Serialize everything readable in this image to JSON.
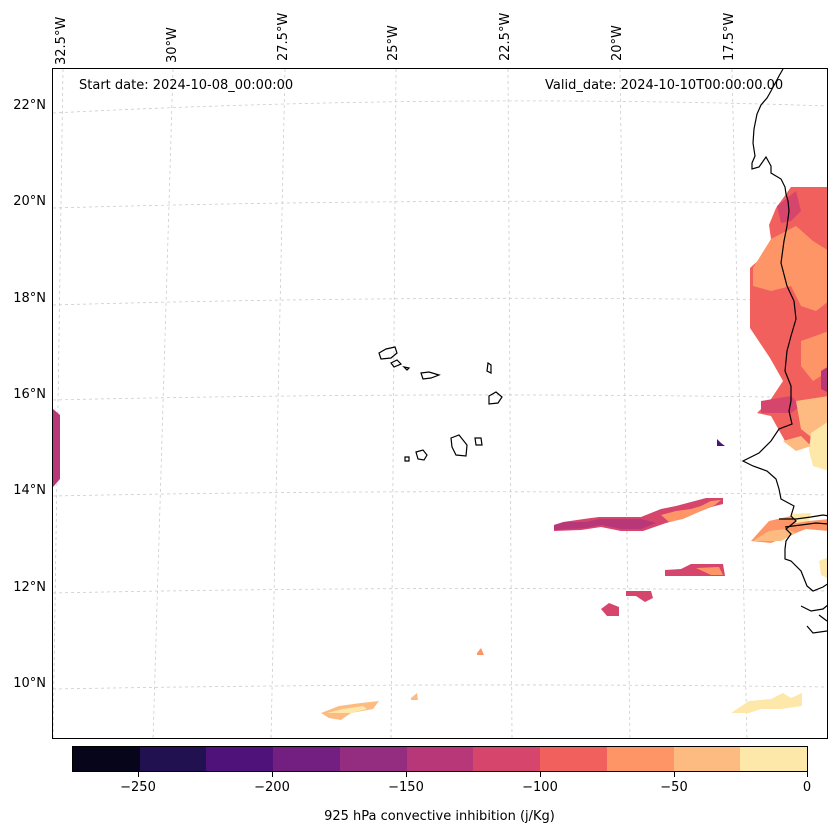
{
  "annotations": {
    "start_date": "Start date: 2024-10-08_00:00:00",
    "valid_date": "Valid_date: 2024-10-10T00:00:00.00"
  },
  "longitude_labels": [
    "32.5°W",
    "30°W",
    "27.5°W",
    "25°W",
    "22.5°W",
    "20°W",
    "17.5°W"
  ],
  "latitude_labels": [
    "22°N",
    "20°N",
    "18°N",
    "16°N",
    "14°N",
    "12°N",
    "10°N"
  ],
  "colorbar": {
    "title": "925 hPa convective inhibition (j/Kg)",
    "tick_labels": [
      "−250",
      "−200",
      "−150",
      "−100",
      "−50",
      "0"
    ],
    "levels": [
      -275,
      -250,
      -225,
      -200,
      -175,
      -150,
      -125,
      -100,
      -75,
      -50,
      -25,
      0
    ],
    "colors": [
      "#06051a",
      "#221150",
      "#4f127b",
      "#721f81",
      "#942c80",
      "#b73779",
      "#d6456c",
      "#f1605d",
      "#fd9567",
      "#febb81",
      "#fde7a9"
    ]
  },
  "map_features": {
    "coastline": "West Africa and Cape Verde islands",
    "gridlines": "dashed, light gray"
  }
}
